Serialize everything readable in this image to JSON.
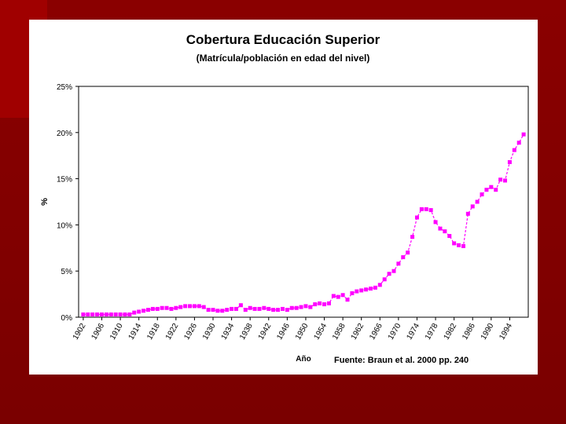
{
  "chart_data": {
    "type": "line",
    "title": "Cobertura Educación Superior",
    "subtitle": "(Matrícula/población en edad del nivel)",
    "y_label": "%",
    "x_label": "Año",
    "annotation": "Fuente: Braun et al. 2000 pp. 240",
    "x": [
      1902,
      1903,
      1904,
      1905,
      1906,
      1907,
      1908,
      1909,
      1910,
      1911,
      1912,
      1913,
      1914,
      1915,
      1916,
      1917,
      1918,
      1919,
      1920,
      1921,
      1922,
      1923,
      1924,
      1925,
      1926,
      1927,
      1928,
      1929,
      1930,
      1931,
      1932,
      1933,
      1934,
      1935,
      1936,
      1937,
      1938,
      1939,
      1940,
      1941,
      1942,
      1943,
      1944,
      1945,
      1946,
      1947,
      1948,
      1949,
      1950,
      1951,
      1952,
      1953,
      1954,
      1955,
      1956,
      1957,
      1958,
      1959,
      1960,
      1961,
      1962,
      1963,
      1964,
      1965,
      1966,
      1967,
      1968,
      1969,
      1970,
      1971,
      1972,
      1973,
      1974,
      1975,
      1976,
      1977,
      1978,
      1979,
      1980,
      1981,
      1982,
      1983,
      1984,
      1985,
      1986,
      1987,
      1988,
      1989,
      1990,
      1991,
      1992,
      1993,
      1994,
      1995,
      1996,
      1997
    ],
    "series": [
      {
        "name": "Cobertura",
        "color": "#ff00ff",
        "values": [
          0.3,
          0.3,
          0.3,
          0.3,
          0.3,
          0.3,
          0.3,
          0.3,
          0.3,
          0.3,
          0.3,
          0.5,
          0.6,
          0.7,
          0.8,
          0.9,
          0.9,
          1.0,
          1.0,
          0.9,
          1.0,
          1.1,
          1.2,
          1.2,
          1.2,
          1.2,
          1.1,
          0.8,
          0.8,
          0.7,
          0.7,
          0.8,
          0.9,
          0.9,
          1.3,
          0.8,
          1.0,
          0.9,
          0.9,
          1.0,
          0.9,
          0.8,
          0.8,
          0.9,
          0.8,
          1.0,
          1.0,
          1.1,
          1.2,
          1.1,
          1.4,
          1.5,
          1.4,
          1.5,
          2.3,
          2.2,
          2.4,
          1.9,
          2.6,
          2.8,
          2.9,
          3.0,
          3.1,
          3.2,
          3.5,
          4.1,
          4.7,
          5.0,
          5.8,
          6.5,
          7.0,
          8.7,
          10.8,
          11.7,
          11.7,
          11.6,
          10.3,
          9.6,
          9.3,
          8.8,
          8.0,
          7.8,
          7.7,
          11.2,
          12.0,
          12.5,
          13.3,
          13.8,
          14.1,
          13.8,
          14.9,
          14.8,
          16.8,
          18.1,
          18.9,
          19.8
        ]
      }
    ],
    "xlim": [
      1901,
      1998
    ],
    "xticks": [
      1902,
      1906,
      1910,
      1914,
      1918,
      1922,
      1926,
      1930,
      1934,
      1938,
      1942,
      1946,
      1950,
      1954,
      1958,
      1962,
      1966,
      1970,
      1974,
      1978,
      1982,
      1986,
      1990,
      1994
    ],
    "ylim": [
      0,
      25
    ],
    "yticks": [
      {
        "value": 0,
        "label": "0%"
      },
      {
        "value": 5,
        "label": "5%"
      },
      {
        "value": 10,
        "label": "10%"
      },
      {
        "value": 15,
        "label": "15%"
      },
      {
        "value": 20,
        "label": "20%"
      },
      {
        "value": 25,
        "label": "25%"
      }
    ],
    "grid": false,
    "line_style": "dashed",
    "marker": "square"
  }
}
